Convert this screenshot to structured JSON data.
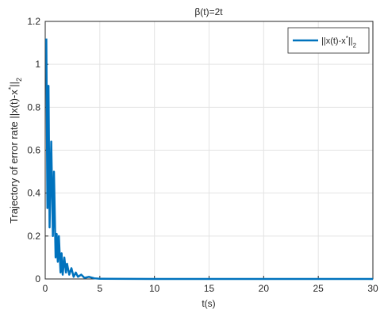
{
  "chart_data": {
    "type": "line",
    "title": "β(t)=2t",
    "xlabel": "t(s)",
    "ylabel": [
      "Trajectory of error rate ||x(t)-x",
      "*",
      "||",
      "2"
    ],
    "x": [
      0.1,
      0.2,
      0.3,
      0.4,
      0.55,
      0.7,
      0.8,
      0.95,
      1.05,
      1.15,
      1.25,
      1.4,
      1.5,
      1.6,
      1.75,
      1.9,
      2.0,
      2.2,
      2.4,
      2.6,
      2.8,
      3.0,
      3.3,
      3.6,
      4,
      4.5,
      5,
      10,
      20,
      30
    ],
    "series": [
      {
        "name": [
          "||x(t)-x",
          "*",
          "||",
          "2"
        ],
        "color": "#0072bd",
        "values": [
          1.12,
          0.33,
          0.9,
          0.24,
          0.64,
          0.2,
          0.5,
          0.1,
          0.21,
          0.08,
          0.2,
          0.03,
          0.12,
          0.02,
          0.1,
          0.03,
          0.07,
          0.02,
          0.05,
          0.01,
          0.03,
          0.01,
          0.02,
          0.005,
          0.01,
          0.003,
          0.001,
          0,
          0,
          0
        ]
      }
    ],
    "xlim": [
      0,
      30
    ],
    "xticks": [
      0,
      5,
      10,
      15,
      20,
      25,
      30
    ],
    "ylim": [
      0,
      1.2
    ],
    "yticks": [
      0,
      0.2,
      0.4,
      0.6,
      0.8,
      1,
      1.2
    ],
    "grid": true,
    "legend": "upper-right"
  }
}
